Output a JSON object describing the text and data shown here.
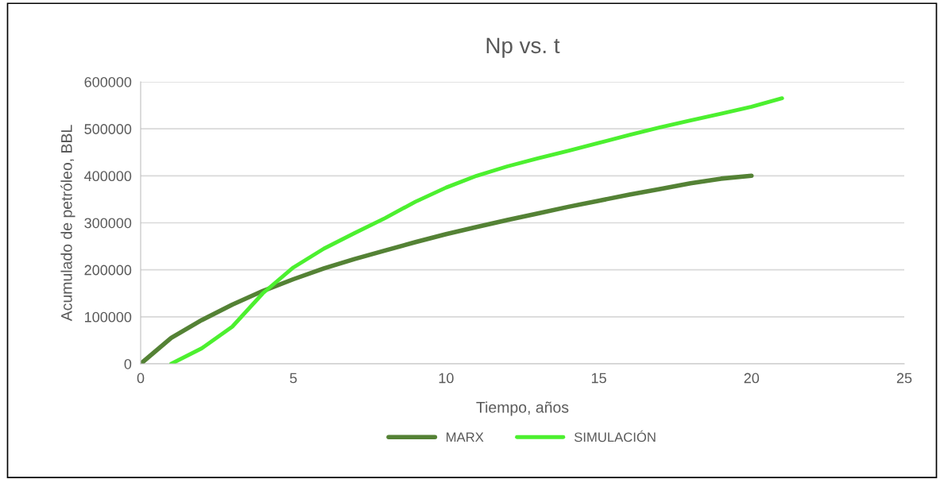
{
  "chart_data": {
    "type": "line",
    "title": "Np vs. t",
    "xlabel": "Tiempo, años",
    "ylabel": "Acumulado de petróleo, BBL",
    "xlim": [
      0,
      25
    ],
    "xticks": [
      0,
      5,
      10,
      15,
      20,
      25
    ],
    "ylim": [
      0,
      600000
    ],
    "yticks": [
      0,
      100000,
      200000,
      300000,
      400000,
      500000,
      600000
    ],
    "grid": "y",
    "legend": "bottom",
    "marker": "none",
    "line_style": "solid",
    "series": [
      {
        "name": "MARX",
        "color": "#548235",
        "x": [
          0,
          1,
          2,
          3,
          4,
          5,
          6,
          7,
          8,
          9,
          10,
          11,
          12,
          13,
          14,
          15,
          16,
          17,
          18,
          19,
          20
        ],
        "values": [
          0,
          55000,
          93000,
          126000,
          155000,
          180000,
          203000,
          223000,
          241000,
          259000,
          276000,
          291000,
          306000,
          320000,
          334000,
          347000,
          360000,
          372000,
          384000,
          394000,
          400000
        ]
      },
      {
        "name": "SIMULACIÓN",
        "color": "#4cf02f",
        "x": [
          1,
          2,
          3,
          4,
          5,
          6,
          7,
          8,
          9,
          10,
          11,
          12,
          13,
          14,
          15,
          16,
          17,
          18,
          19,
          20,
          21
        ],
        "values": [
          0,
          33000,
          79000,
          150000,
          205000,
          245000,
          278000,
          310000,
          345000,
          375000,
          400000,
          420000,
          437000,
          453000,
          470000,
          487000,
          503000,
          518000,
          532000,
          547000,
          565000
        ]
      }
    ]
  }
}
